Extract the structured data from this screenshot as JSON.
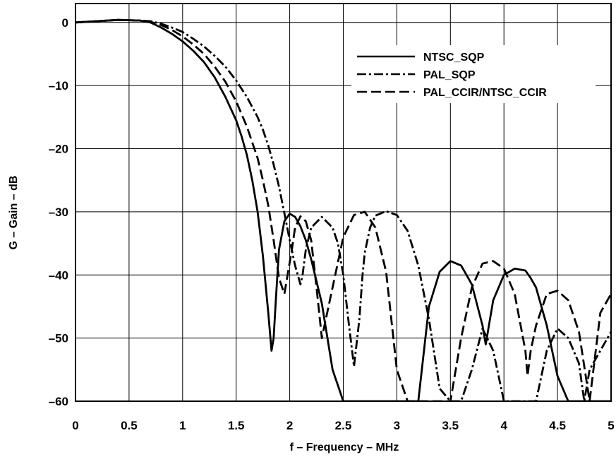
{
  "chart_data": {
    "type": "line",
    "xlabel": "f – Frequency – MHz",
    "ylabel": "G – Gain – dB",
    "xlim": [
      0,
      5
    ],
    "ylim": [
      -60,
      3
    ],
    "xticks": [
      0,
      0.5,
      1,
      1.5,
      2,
      2.5,
      3,
      3.5,
      4,
      4.5,
      5
    ],
    "xtick_labels": [
      "0",
      "0.5",
      "1",
      "1.5",
      "2",
      "2.5",
      "3",
      "3.5",
      "4",
      "4.5",
      "5"
    ],
    "yticks": [
      0,
      -10,
      -20,
      -30,
      -40,
      -50,
      -60
    ],
    "ytick_labels": [
      "0",
      "–10",
      "–20",
      "–30",
      "–40",
      "–50",
      "–60"
    ],
    "grid": true,
    "legend_position": "top-right",
    "colors": {
      "line": "#000000",
      "grid": "#000000",
      "background": "#ffffff"
    },
    "series": [
      {
        "name": "NTSC_SQP",
        "style": "solid",
        "x": [
          0,
          0.2,
          0.4,
          0.6,
          0.7,
          0.8,
          0.9,
          1.0,
          1.1,
          1.2,
          1.3,
          1.4,
          1.5,
          1.55,
          1.6,
          1.65,
          1.7,
          1.75,
          1.8,
          1.83,
          1.85,
          1.87,
          1.9,
          1.95,
          2.0,
          2.05,
          2.1,
          2.15,
          2.2,
          2.3,
          2.4,
          2.5,
          2.6,
          2.7,
          2.8,
          2.9,
          2.95,
          3.0,
          3.1,
          3.2,
          3.3,
          3.4,
          3.5,
          3.6,
          3.7,
          3.8,
          3.83,
          3.86,
          3.9,
          4.0,
          4.1,
          4.2,
          4.25,
          4.3,
          4.4,
          4.5,
          4.6,
          4.63,
          4.66,
          4.7,
          4.8,
          4.9,
          5.0
        ],
        "y": [
          0,
          0.2,
          0.4,
          0.3,
          0,
          -0.8,
          -1.8,
          -3,
          -4.5,
          -6.3,
          -8.7,
          -11.8,
          -15.5,
          -18,
          -21,
          -25,
          -30,
          -37,
          -46,
          -52,
          -50,
          -44,
          -36,
          -31.5,
          -30.3,
          -30.8,
          -32.3,
          -34.5,
          -37.5,
          -44.5,
          -55,
          -60,
          -60,
          -60,
          -60,
          -60,
          -60,
          -60,
          -60,
          -60,
          -45,
          -39.5,
          -37.8,
          -38.5,
          -41.5,
          -48,
          -51,
          -48,
          -44,
          -40,
          -39,
          -39.3,
          -40.5,
          -42,
          -48,
          -56,
          -60,
          -60,
          -60,
          -60,
          -60,
          -60,
          -60
        ]
      },
      {
        "name": "PAL_SQP",
        "style": "dashdot",
        "x": [
          0,
          0.2,
          0.4,
          0.6,
          0.7,
          0.8,
          0.9,
          1.0,
          1.1,
          1.2,
          1.3,
          1.4,
          1.5,
          1.6,
          1.7,
          1.75,
          1.8,
          1.85,
          1.9,
          1.95,
          2.0,
          2.05,
          2.1,
          2.12,
          2.15,
          2.2,
          2.3,
          2.4,
          2.45,
          2.5,
          2.55,
          2.6,
          2.65,
          2.68,
          2.7,
          2.75,
          2.8,
          2.9,
          3.0,
          3.1,
          3.2,
          3.3,
          3.4,
          3.5,
          3.55,
          3.6,
          3.7,
          3.8,
          3.9,
          4.0,
          4.1,
          4.15,
          4.2,
          4.3,
          4.4,
          4.5,
          4.6,
          4.7,
          4.75,
          4.8,
          4.9,
          5.0
        ],
        "y": [
          0,
          0.2,
          0.4,
          0.3,
          0.2,
          -0.2,
          -0.8,
          -1.5,
          -2.6,
          -3.8,
          -5.3,
          -7,
          -9.2,
          -11.8,
          -15,
          -17,
          -19.5,
          -22.5,
          -26,
          -30.2,
          -34.5,
          -38.5,
          -41.5,
          -40,
          -36,
          -32.5,
          -30.8,
          -32.5,
          -35,
          -40,
          -47.5,
          -54.5,
          -47,
          -40,
          -36.5,
          -32.5,
          -30.6,
          -29.9,
          -30.5,
          -33,
          -38.5,
          -47,
          -58,
          -60,
          -60,
          -60,
          -55,
          -48.5,
          -52,
          -60,
          -60,
          -60,
          -60,
          -60,
          -52,
          -48.5,
          -50,
          -54,
          -60,
          -55,
          -52,
          -49
        ]
      },
      {
        "name": "PAL_CCIR/NTSC_CCIR",
        "style": "dashed",
        "x": [
          0,
          0.2,
          0.4,
          0.6,
          0.7,
          0.8,
          0.9,
          1.0,
          1.1,
          1.2,
          1.3,
          1.4,
          1.5,
          1.6,
          1.7,
          1.75,
          1.8,
          1.85,
          1.9,
          1.95,
          2.0,
          2.02,
          2.05,
          2.1,
          2.15,
          2.2,
          2.25,
          2.3,
          2.4,
          2.5,
          2.6,
          2.7,
          2.8,
          2.9,
          3.0,
          3.1,
          3.2,
          3.3,
          3.4,
          3.5,
          3.6,
          3.7,
          3.8,
          3.9,
          4.0,
          4.1,
          4.2,
          4.22,
          4.25,
          4.3,
          4.4,
          4.5,
          4.6,
          4.7,
          4.8,
          4.9,
          5.0
        ],
        "y": [
          0,
          0.2,
          0.4,
          0.3,
          0.1,
          -0.4,
          -1.2,
          -2.2,
          -3.5,
          -5,
          -7,
          -9.4,
          -12.5,
          -16.5,
          -21.5,
          -25,
          -29,
          -34.5,
          -40.5,
          -43,
          -38,
          -36,
          -32.5,
          -30.7,
          -31.5,
          -34.5,
          -42,
          -50,
          -42,
          -34,
          -30.5,
          -30,
          -32.5,
          -39.5,
          -55,
          -60,
          -60,
          -60,
          -60,
          -60,
          -50,
          -42,
          -38.2,
          -37.8,
          -39,
          -43,
          -52,
          -56,
          -52,
          -48,
          -43,
          -42.5,
          -44,
          -49,
          -60,
          -46,
          -43
        ]
      }
    ]
  }
}
